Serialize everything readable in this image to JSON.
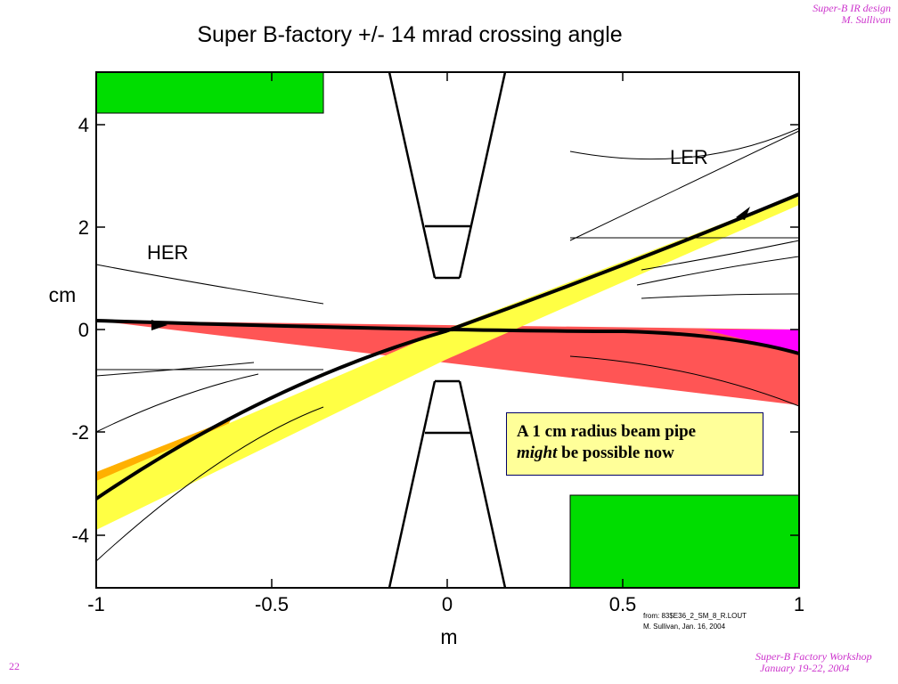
{
  "header": {
    "line1": "Super-B IR design",
    "line2": "M. Sullivan"
  },
  "footer": {
    "line1": "Super-B Factory Workshop",
    "line2": "January 19-22, 2004"
  },
  "page_number": "22",
  "chart_data": {
    "type": "diagram",
    "title": "Super B-factory +/- 14 mrad crossing angle",
    "xlabel": "m",
    "ylabel": "cm",
    "xlim": [
      -1,
      1
    ],
    "ylim": [
      -5,
      5
    ],
    "x_tick_labels": [
      "-1",
      "-0.5",
      "0",
      "0.5",
      "1"
    ],
    "y_tick_labels": [
      "4",
      "2",
      "0",
      "-2",
      "-4"
    ],
    "labels": {
      "ler": "LER",
      "her": "HER"
    },
    "annotation": {
      "line1": "A 1 cm radius beam pipe",
      "line2_italic": "might",
      "line2_rest": " be possible now"
    },
    "credit": {
      "line1": "from: 83$E36_2_SM_8_R.LOUT",
      "line2": "M. Sullivan, Jan. 16, 2004"
    },
    "colors": {
      "magnet": "#00dd00",
      "her_fan": "#ff5555",
      "ler_fan": "#ffff44",
      "orange": "#ffb000",
      "magenta": "#ff00ff"
    }
  }
}
